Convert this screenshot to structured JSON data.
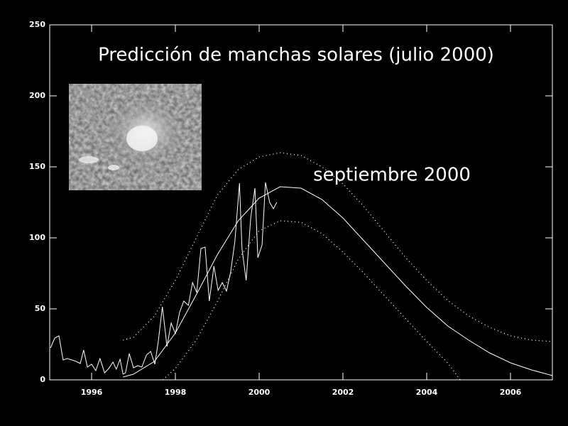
{
  "chart_data": {
    "type": "line",
    "title": "Predicción de manchas solares (julio 2000)",
    "annotation": "septiembre 2000",
    "xlim": [
      1995,
      2007
    ],
    "xticks": [
      1996,
      1998,
      2000,
      2002,
      2004,
      2006
    ],
    "ylim": [
      0,
      250
    ],
    "yticks": [
      0,
      50,
      100,
      150,
      200,
      250
    ],
    "background": "#000000",
    "series": [
      {
        "color": "#ffffff",
        "style": "solid",
        "x": [
          1995.02,
          1995.12,
          1995.22,
          1995.32,
          1995.42,
          1995.53,
          1995.63,
          1995.73,
          1995.81,
          1995.9,
          1996.0,
          1996.1,
          1996.2,
          1996.31,
          1996.41,
          1996.51,
          1996.59,
          1996.68,
          1996.75,
          1996.81,
          1996.9,
          1997.0,
          1997.1,
          1997.2,
          1997.31,
          1997.41,
          1997.51,
          1997.59,
          1997.69,
          1997.8,
          1997.9,
          1998.0,
          1998.1,
          1998.2,
          1998.31,
          1998.41,
          1998.51,
          1998.61,
          1998.71,
          1998.81,
          1998.92,
          1999.02,
          1999.12,
          1999.22,
          1999.32,
          1999.42,
          1999.53,
          1999.59,
          1999.69,
          1999.8,
          1999.9,
          1999.97,
          2000.07,
          2000.15,
          2000.25,
          2000.34,
          2000.42
        ],
        "values": [
          22.5,
          29.5,
          31,
          14,
          15,
          14,
          13,
          11.5,
          21,
          9,
          11,
          6.5,
          15,
          5,
          8,
          12.5,
          7.5,
          14.5,
          4,
          5,
          18.5,
          8.5,
          10,
          9,
          17.5,
          20,
          11,
          26.5,
          51.5,
          23.5,
          40,
          32.5,
          47.5,
          55.5,
          52.5,
          68.5,
          61.5,
          92.5,
          93.5,
          55.5,
          80,
          63,
          68.5,
          62.5,
          76,
          97.5,
          138.5,
          92.5,
          70,
          114.5,
          135,
          86,
          95,
          139,
          125,
          120.5,
          125
        ]
      },
      {
        "color": "#ffffff",
        "style": "solid",
        "x": [
          1996.75,
          1997,
          1997.5,
          1998,
          1998.5,
          1999,
          1999.5,
          2000,
          2000.5,
          2001,
          2001.5,
          2002,
          2002.5,
          2003,
          2003.5,
          2004,
          2004.5,
          2005,
          2005.5,
          2006,
          2006.5,
          2007
        ],
        "values": [
          2,
          4,
          13,
          33,
          60,
          88,
          112,
          128,
          136,
          135,
          127,
          114,
          98,
          82,
          66,
          51,
          38,
          28,
          19,
          12,
          7,
          3
        ]
      },
      {
        "color": "#ffffff",
        "style": "dotted",
        "x": [
          1996.75,
          1997,
          1997.5,
          1998,
          1998.5,
          1999,
          1999.5,
          2000,
          2000.5,
          2001,
          2001.5,
          2002,
          2002.5,
          2003,
          2003.5,
          2004,
          2004.5,
          2005,
          2005.5,
          2006,
          2006.5,
          2007
        ],
        "values": [
          28,
          30,
          45,
          70,
          100,
          130,
          148,
          157,
          160,
          158,
          150,
          138,
          122,
          104,
          86,
          70,
          56,
          45,
          37,
          31,
          28,
          27
        ]
      },
      {
        "color": "#ffffff",
        "style": "dotted",
        "x": [
          1997.7,
          1998,
          1998.5,
          1999,
          1999.5,
          2000,
          2000.5,
          2001,
          2001.5,
          2002,
          2002.5,
          2003,
          2003.5,
          2004,
          2004.5,
          2004.8
        ],
        "values": [
          0,
          8,
          28,
          55,
          85,
          105,
          112,
          111,
          103,
          90,
          75,
          59,
          43,
          27,
          12,
          0
        ]
      }
    ]
  }
}
